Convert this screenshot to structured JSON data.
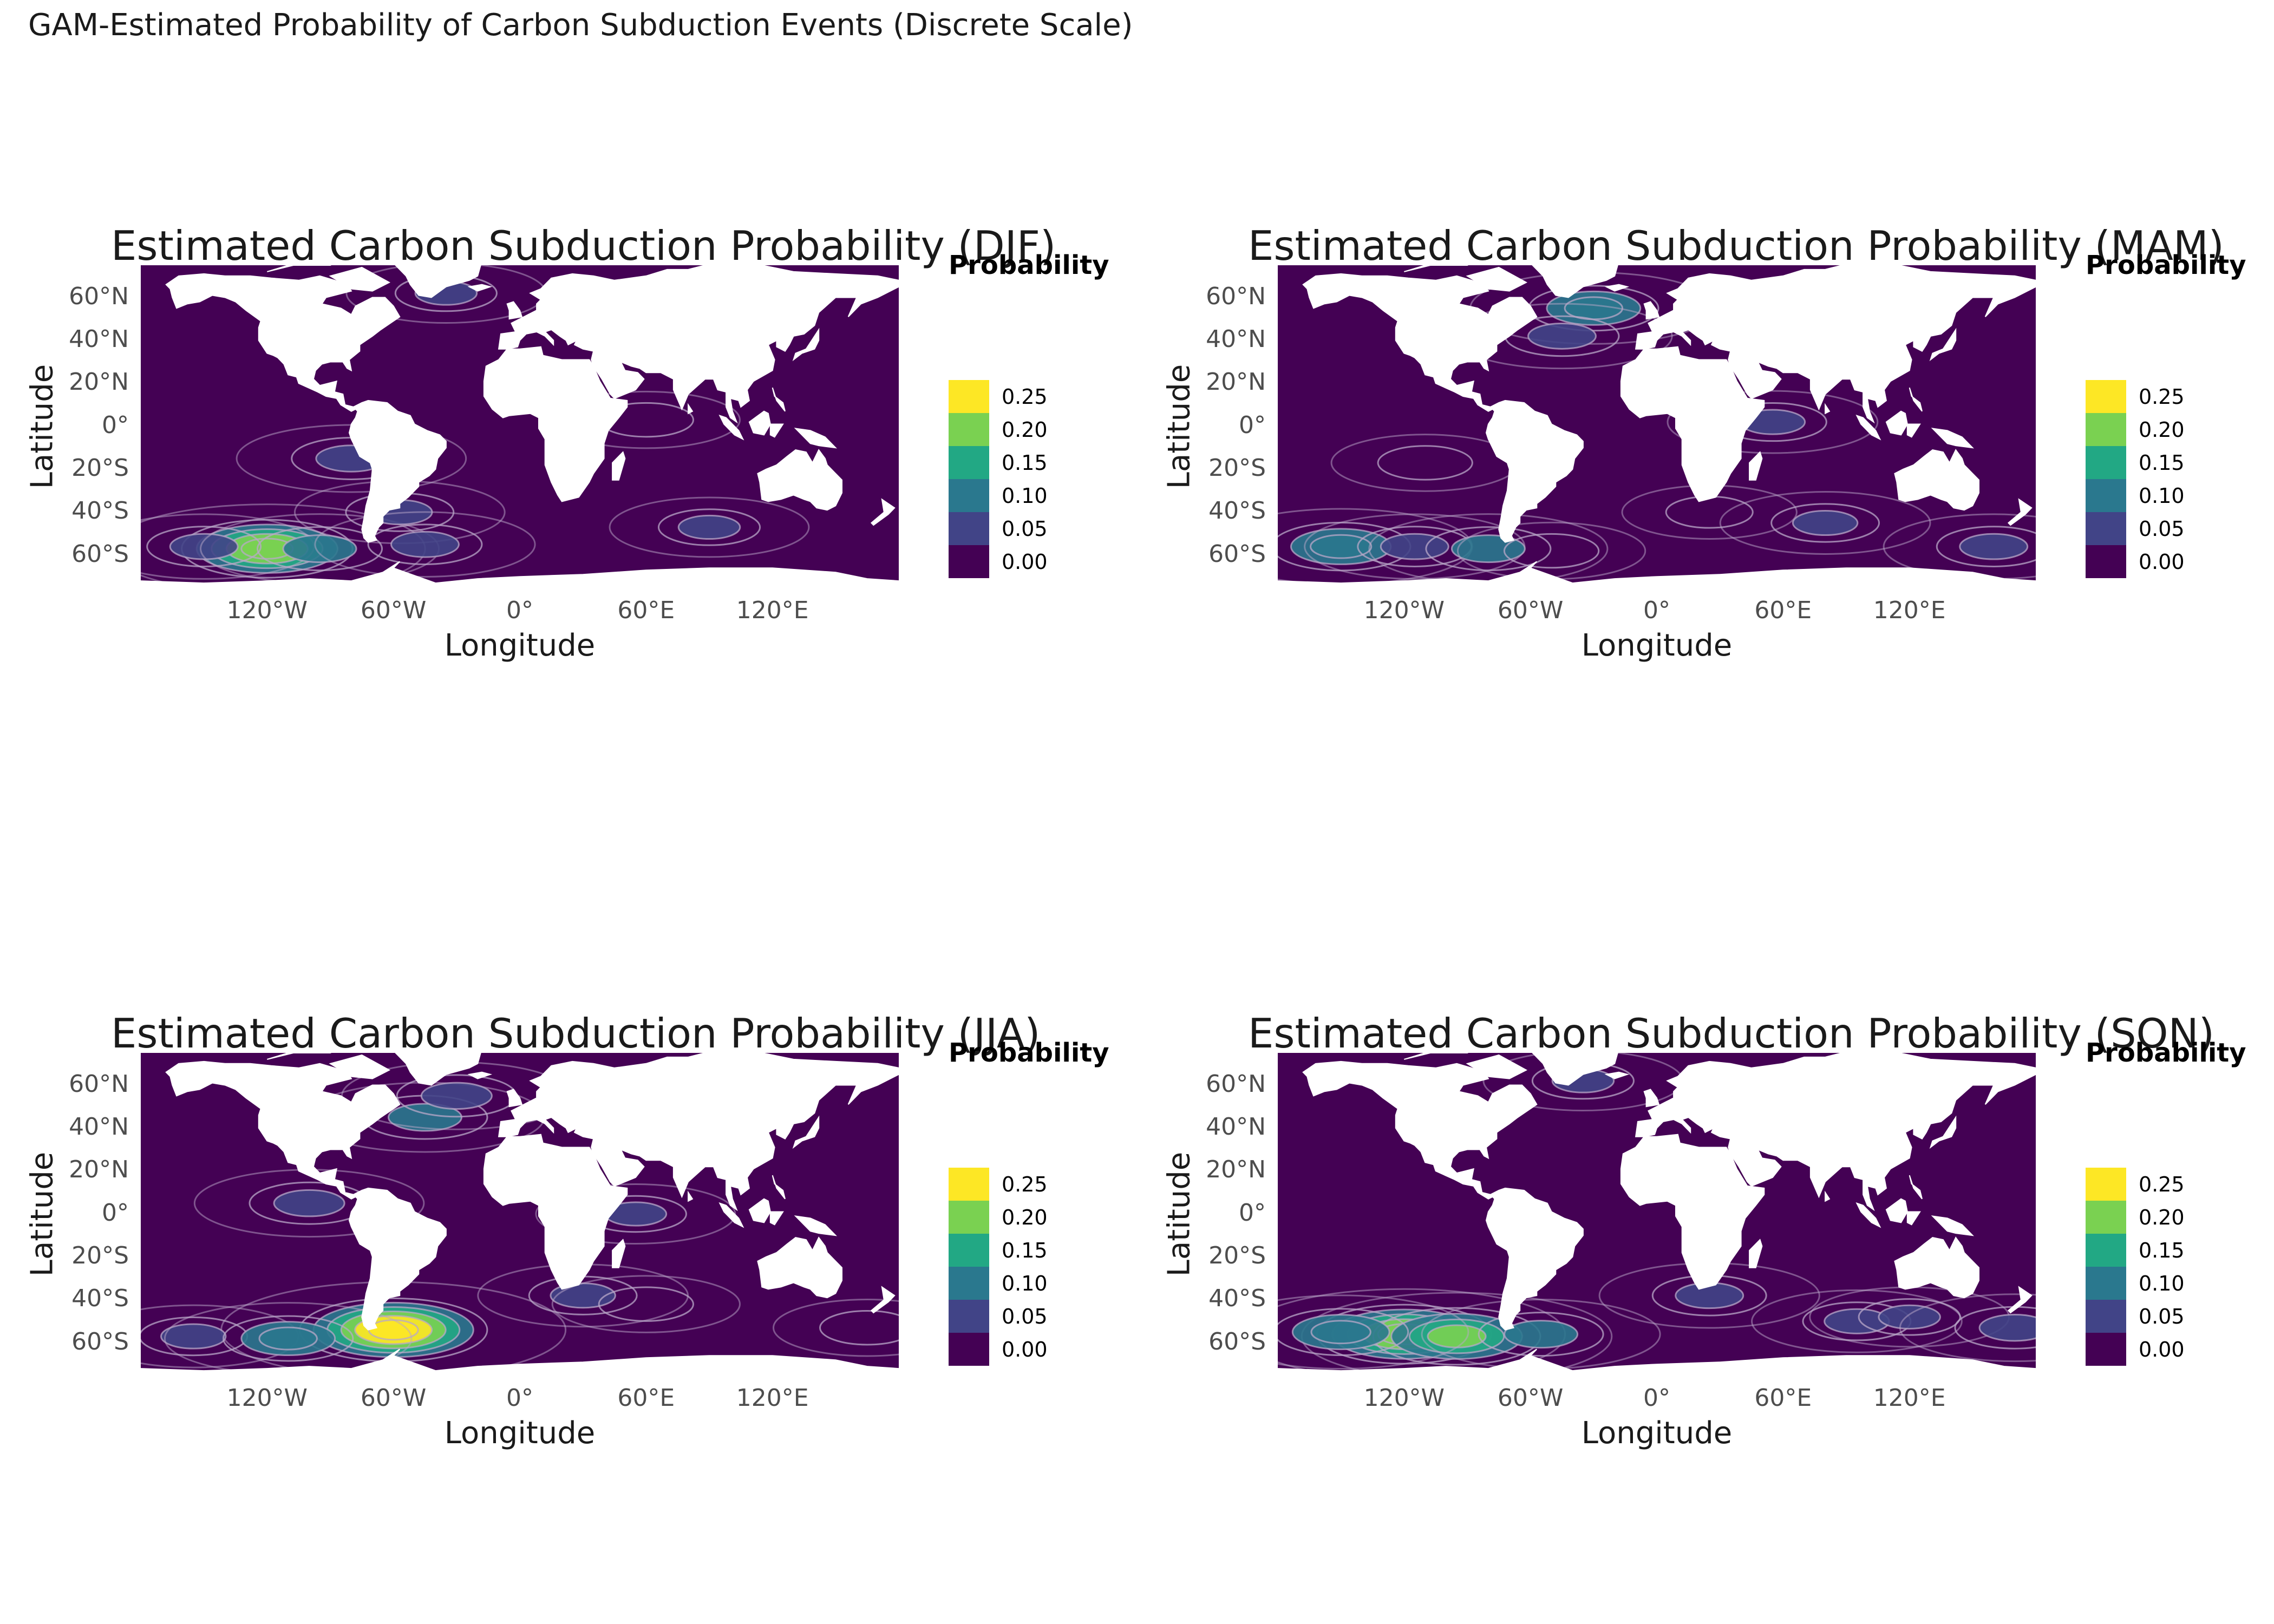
{
  "title": "GAM-Estimated Probability of Carbon Subduction Events (Discrete Scale)",
  "chart_data": {
    "type": "map",
    "x_axis": {
      "label": "Longitude",
      "ticks": [
        "120°W",
        "60°W",
        "0°",
        "60°E",
        "120°E"
      ],
      "tick_values": [
        -120,
        -60,
        0,
        60,
        120
      ],
      "range": [
        -180,
        180
      ]
    },
    "y_axis": {
      "label": "Latitude",
      "ticks": [
        "60°N",
        "40°N",
        "20°N",
        "0°",
        "20°S",
        "40°S",
        "60°S"
      ],
      "tick_values": [
        60,
        40,
        20,
        0,
        -20,
        -40,
        -60
      ],
      "range": [
        -75,
        75
      ]
    },
    "legend": {
      "title": "Probability",
      "labels": [
        "0.25",
        "0.20",
        "0.15",
        "0.10",
        "0.05",
        "0.00"
      ],
      "bins": [
        {
          "color": "#fde725"
        },
        {
          "color": "#7ad151"
        },
        {
          "color": "#22a884"
        },
        {
          "color": "#2a788e"
        },
        {
          "color": "#414487"
        },
        {
          "color": "#440154"
        }
      ]
    },
    "panels": [
      {
        "title": "Estimated Carbon Subduction Probability (DJF)",
        "hotspots": [
          {
            "lon": -120,
            "lat": -57,
            "p": 0.21
          },
          {
            "lon": -150,
            "lat": -56,
            "p": 0.08
          },
          {
            "lon": -95,
            "lat": -57,
            "p": 0.1
          },
          {
            "lon": -80,
            "lat": -15,
            "p": 0.09
          },
          {
            "lon": -57,
            "lat": -40,
            "p": 0.07
          },
          {
            "lon": -45,
            "lat": -55,
            "p": 0.08
          },
          {
            "lon": -35,
            "lat": 62,
            "p": 0.06
          },
          {
            "lon": 60,
            "lat": 3,
            "p": 0.05
          },
          {
            "lon": 90,
            "lat": -47,
            "p": 0.06
          }
        ]
      },
      {
        "title": "Estimated Carbon Subduction Probability (MAM)",
        "hotspots": [
          {
            "lon": -150,
            "lat": -56,
            "p": 0.13
          },
          {
            "lon": -115,
            "lat": -56,
            "p": 0.08
          },
          {
            "lon": -80,
            "lat": -57,
            "p": 0.1
          },
          {
            "lon": -50,
            "lat": -58,
            "p": 0.05
          },
          {
            "lon": -110,
            "lat": -17,
            "p": 0.05
          },
          {
            "lon": -30,
            "lat": 55,
            "p": 0.11
          },
          {
            "lon": -45,
            "lat": 42,
            "p": 0.08
          },
          {
            "lon": 55,
            "lat": 2,
            "p": 0.07
          },
          {
            "lon": 25,
            "lat": -40,
            "p": 0.04
          },
          {
            "lon": 80,
            "lat": -45,
            "p": 0.07
          },
          {
            "lon": 160,
            "lat": -56,
            "p": 0.08
          }
        ]
      },
      {
        "title": "Estimated Carbon Subduction Probability (JJA)",
        "hotspots": [
          {
            "lon": -60,
            "lat": -54,
            "p": 0.26
          },
          {
            "lon": -155,
            "lat": -57,
            "p": 0.07
          },
          {
            "lon": -110,
            "lat": -58,
            "p": 0.11
          },
          {
            "lon": -100,
            "lat": 5,
            "p": 0.09
          },
          {
            "lon": -45,
            "lat": 45,
            "p": 0.1
          },
          {
            "lon": -30,
            "lat": 55,
            "p": 0.09
          },
          {
            "lon": 55,
            "lat": 0,
            "p": 0.06
          },
          {
            "lon": 30,
            "lat": -38,
            "p": 0.07
          },
          {
            "lon": 60,
            "lat": -42,
            "p": 0.05
          },
          {
            "lon": 165,
            "lat": -53,
            "p": 0.05
          }
        ]
      },
      {
        "title": "Estimated Carbon Subduction Probability (SON)",
        "hotspots": [
          {
            "lon": -120,
            "lat": -56,
            "p": 0.22
          },
          {
            "lon": -95,
            "lat": -57,
            "p": 0.2
          },
          {
            "lon": -150,
            "lat": -55,
            "p": 0.12
          },
          {
            "lon": -55,
            "lat": -56,
            "p": 0.1
          },
          {
            "lon": -35,
            "lat": 62,
            "p": 0.06
          },
          {
            "lon": 25,
            "lat": -38,
            "p": 0.08
          },
          {
            "lon": 95,
            "lat": -50,
            "p": 0.07
          },
          {
            "lon": 120,
            "lat": -48,
            "p": 0.06
          },
          {
            "lon": 170,
            "lat": -53,
            "p": 0.09
          }
        ]
      }
    ]
  }
}
